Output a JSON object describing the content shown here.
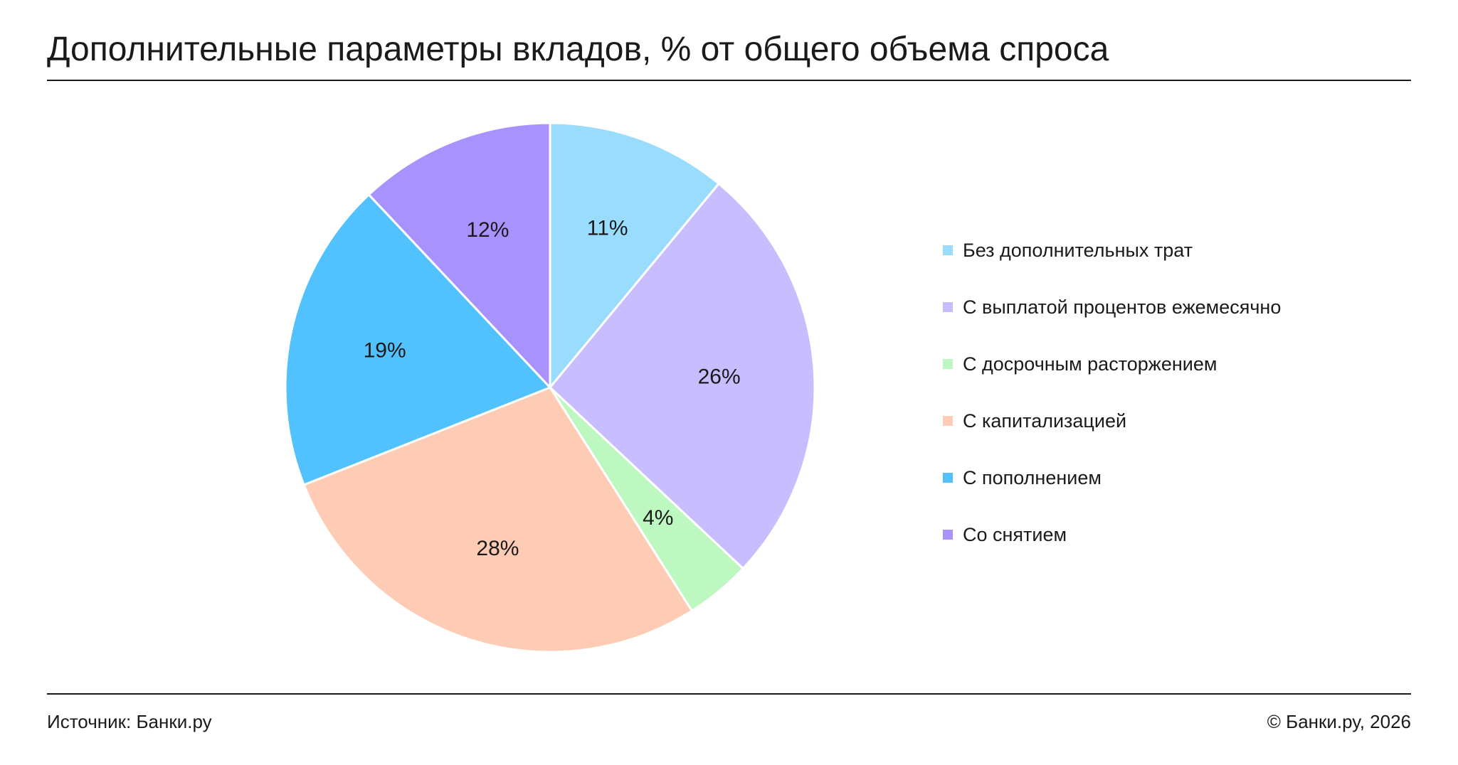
{
  "title": "Дополнительные параметры вкладов, % от общего объема спроса",
  "footer": {
    "source": "Источник: Банки.ру",
    "copyright": "© Банки.ру, 2026"
  },
  "chart_data": {
    "type": "pie",
    "title": "Дополнительные параметры вкладов, % от общего объема спроса",
    "slices": [
      {
        "label": "Без дополнительных трат",
        "value": 11,
        "value_label": "11%",
        "color": "#99DCFE"
      },
      {
        "label": "С выплатой процентов ежемесячно",
        "value": 26,
        "value_label": "26%",
        "color": "#C7BDFF"
      },
      {
        "label": "С досрочным расторжением",
        "value": 4,
        "value_label": "4%",
        "color": "#BDF8C0"
      },
      {
        "label": "С капитализацией",
        "value": 28,
        "value_label": "28%",
        "color": "#FECCB4"
      },
      {
        "label": "С пополнением",
        "value": 19,
        "value_label": "19%",
        "color": "#52C2FE"
      },
      {
        "label": "Со снятием",
        "value": 12,
        "value_label": "12%",
        "color": "#A893FE"
      }
    ],
    "start_angle": "12 o'clock",
    "direction": "clockwise",
    "legend_position": "right"
  }
}
